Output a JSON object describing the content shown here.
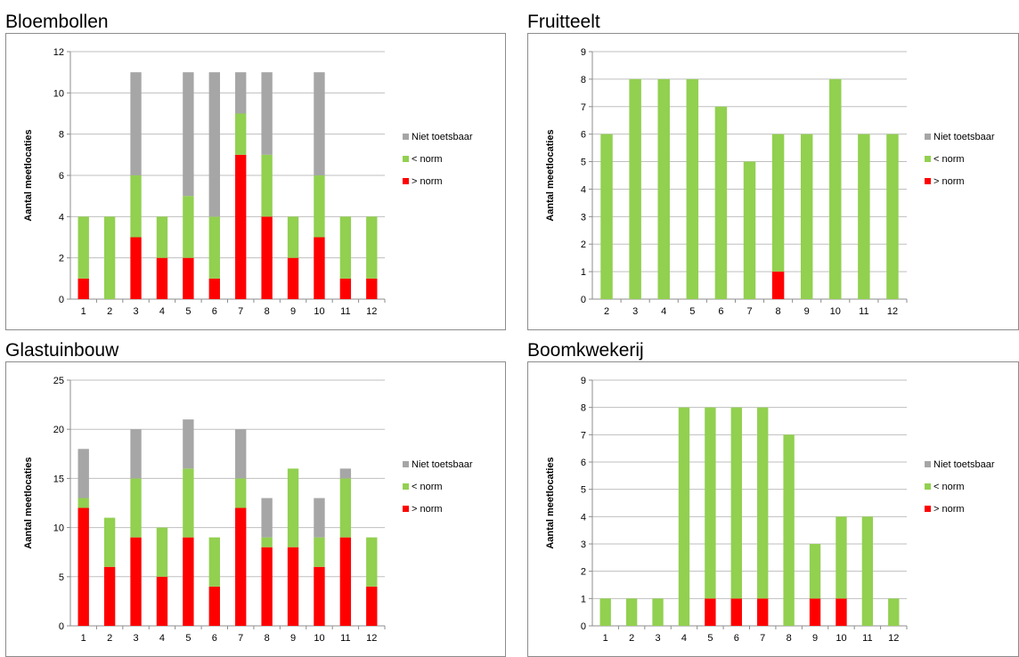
{
  "colors": {
    "niet": "#a6a6a6",
    "lt": "#92d050",
    "gt": "#ff0000",
    "grid": "#bfbfbf",
    "axis": "#8c8c8c"
  },
  "legend": [
    "Niet toetsbaar",
    "< norm",
    "> norm"
  ],
  "chart_data": [
    {
      "type": "bar",
      "stacked": true,
      "title": "Bloembollen",
      "xlabel": "",
      "ylabel": "Aantal meetlocaties",
      "ylim": [
        0,
        12
      ],
      "ystep": 2,
      "legend_position": "right",
      "grid": true,
      "categories": [
        "1",
        "2",
        "3",
        "4",
        "5",
        "6",
        "7",
        "8",
        "9",
        "10",
        "11",
        "12"
      ],
      "series": [
        {
          "name": "> norm",
          "values": [
            1,
            0,
            3,
            2,
            2,
            1,
            7,
            4,
            2,
            3,
            1,
            1
          ]
        },
        {
          "name": "< norm",
          "values": [
            3,
            4,
            3,
            2,
            3,
            3,
            2,
            3,
            2,
            3,
            3,
            3
          ]
        },
        {
          "name": "Niet toetsbaar",
          "values": [
            0,
            0,
            5,
            0,
            6,
            7,
            2,
            4,
            0,
            5,
            0,
            0
          ]
        }
      ]
    },
    {
      "type": "bar",
      "stacked": true,
      "title": "Fruitteelt",
      "xlabel": "",
      "ylabel": "Aantal meetlocaties",
      "ylim": [
        0,
        9
      ],
      "ystep": 1,
      "legend_position": "right",
      "grid": true,
      "categories": [
        "2",
        "3",
        "4",
        "5",
        "6",
        "7",
        "8",
        "9",
        "10",
        "11",
        "12"
      ],
      "series": [
        {
          "name": "> norm",
          "values": [
            0,
            0,
            0,
            0,
            0,
            0,
            1,
            0,
            0,
            0,
            0
          ]
        },
        {
          "name": "< norm",
          "values": [
            6,
            8,
            8,
            8,
            7,
            5,
            5,
            6,
            8,
            6,
            6
          ]
        },
        {
          "name": "Niet toetsbaar",
          "values": [
            0,
            0,
            0,
            0,
            0,
            0,
            0,
            0,
            0,
            0,
            0
          ]
        }
      ]
    },
    {
      "type": "bar",
      "stacked": true,
      "title": "Glastuinbouw",
      "xlabel": "",
      "ylabel": "Aantal meetlocaties",
      "ylim": [
        0,
        25
      ],
      "ystep": 5,
      "legend_position": "right",
      "grid": true,
      "categories": [
        "1",
        "2",
        "3",
        "4",
        "5",
        "6",
        "7",
        "8",
        "9",
        "10",
        "11",
        "12"
      ],
      "series": [
        {
          "name": "> norm",
          "values": [
            12,
            6,
            9,
            5,
            9,
            4,
            12,
            8,
            8,
            6,
            9,
            4
          ]
        },
        {
          "name": "< norm",
          "values": [
            1,
            5,
            6,
            5,
            7,
            5,
            3,
            1,
            8,
            3,
            6,
            5
          ]
        },
        {
          "name": "Niet toetsbaar",
          "values": [
            5,
            0,
            5,
            0,
            5,
            0,
            5,
            4,
            0,
            4,
            1,
            0
          ]
        }
      ]
    },
    {
      "type": "bar",
      "stacked": true,
      "title": "Boomkwekerij",
      "xlabel": "",
      "ylabel": "Aantal meetlocaties",
      "ylim": [
        0,
        9
      ],
      "ystep": 1,
      "legend_position": "right",
      "grid": true,
      "categories": [
        "1",
        "2",
        "3",
        "4",
        "5",
        "6",
        "7",
        "8",
        "9",
        "10",
        "11",
        "12"
      ],
      "series": [
        {
          "name": "> norm",
          "values": [
            0,
            0,
            0,
            0,
            1,
            1,
            1,
            0,
            1,
            1,
            0,
            0
          ]
        },
        {
          "name": "< norm",
          "values": [
            1,
            1,
            1,
            8,
            7,
            7,
            7,
            7,
            2,
            3,
            4,
            1
          ]
        },
        {
          "name": "Niet toetsbaar",
          "values": [
            0,
            0,
            0,
            0,
            0,
            0,
            0,
            0,
            0,
            0,
            0,
            0
          ]
        }
      ]
    }
  ]
}
